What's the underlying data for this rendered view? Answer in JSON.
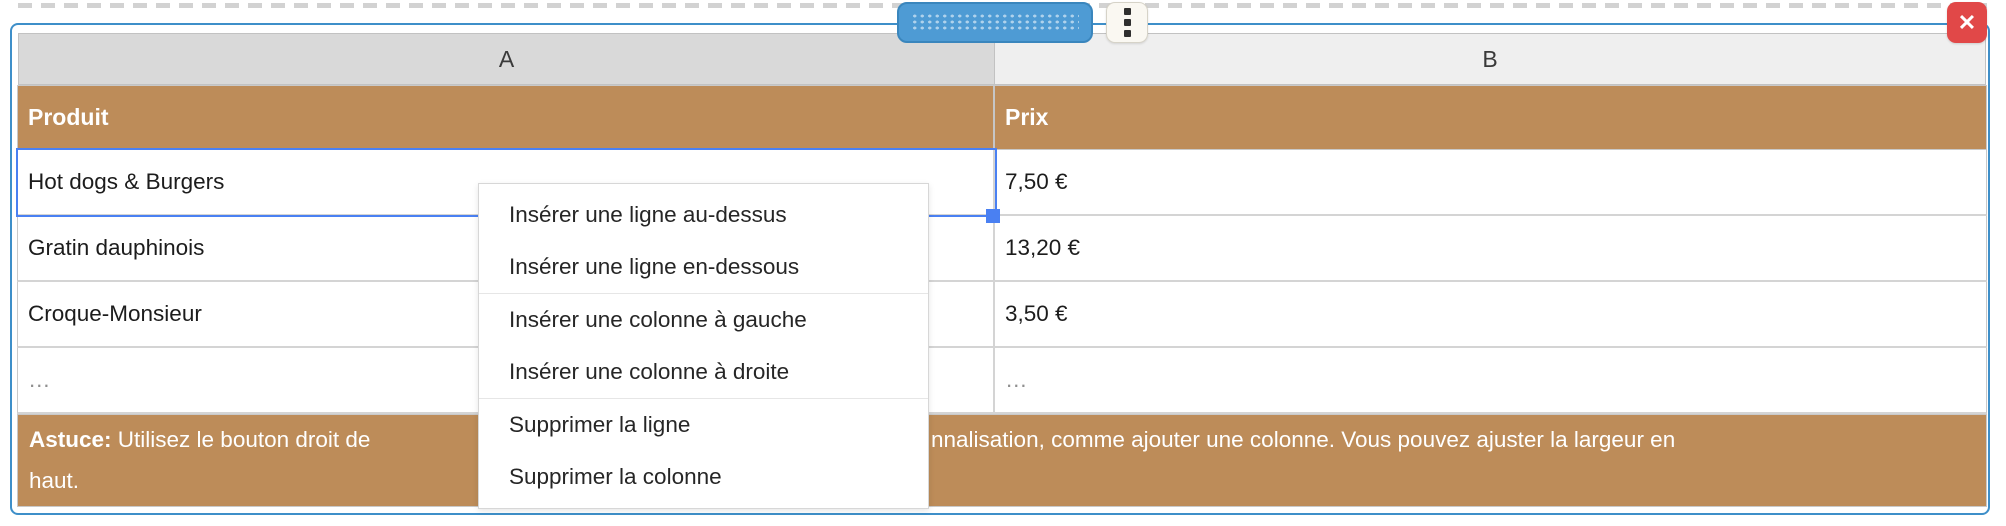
{
  "colors": {
    "brown": "#bd8c59",
    "sel_blue": "#4a80f2",
    "frame_blue": "#3e8fc9",
    "pill_blue": "#4e9bd4",
    "close_red": "#e14848"
  },
  "column_headers": [
    {
      "label": "A",
      "selected": true
    },
    {
      "label": "B",
      "selected": false
    }
  ],
  "table": {
    "header": [
      "Produit",
      "Prix"
    ],
    "rows": [
      [
        "Hot dogs & Burgers",
        "7,50 €"
      ],
      [
        "Gratin dauphinois",
        "13,20 €"
      ],
      [
        "Croque-Monsieur",
        "3,50 €"
      ],
      [
        "…",
        "…"
      ]
    ],
    "footer": {
      "bold_prefix": "Astuce:",
      "visible_left": " Utilisez le bouton droit de ",
      "visible_right": "nnalisation, comme ajouter une colonne. Vous pouvez ajuster la largeur en",
      "visible_line2": "haut."
    }
  },
  "selection": {
    "selected_cell_text": "Hot dogs & Burgers",
    "selected_column": "A"
  },
  "context_menu": {
    "groups": [
      [
        "Insérer une ligne au-dessus",
        "Insérer une ligne en-dessous"
      ],
      [
        "Insérer une colonne à gauche",
        "Insérer une colonne à droite"
      ],
      [
        "Supprimer la ligne",
        "Supprimer la colonne"
      ]
    ]
  },
  "toolbar": {
    "drag_handle_icon": "dotted-grip",
    "options_icon": "vertical-ellipsis",
    "close_glyph": "✕"
  },
  "artifact": {
    "glyph": "("
  }
}
